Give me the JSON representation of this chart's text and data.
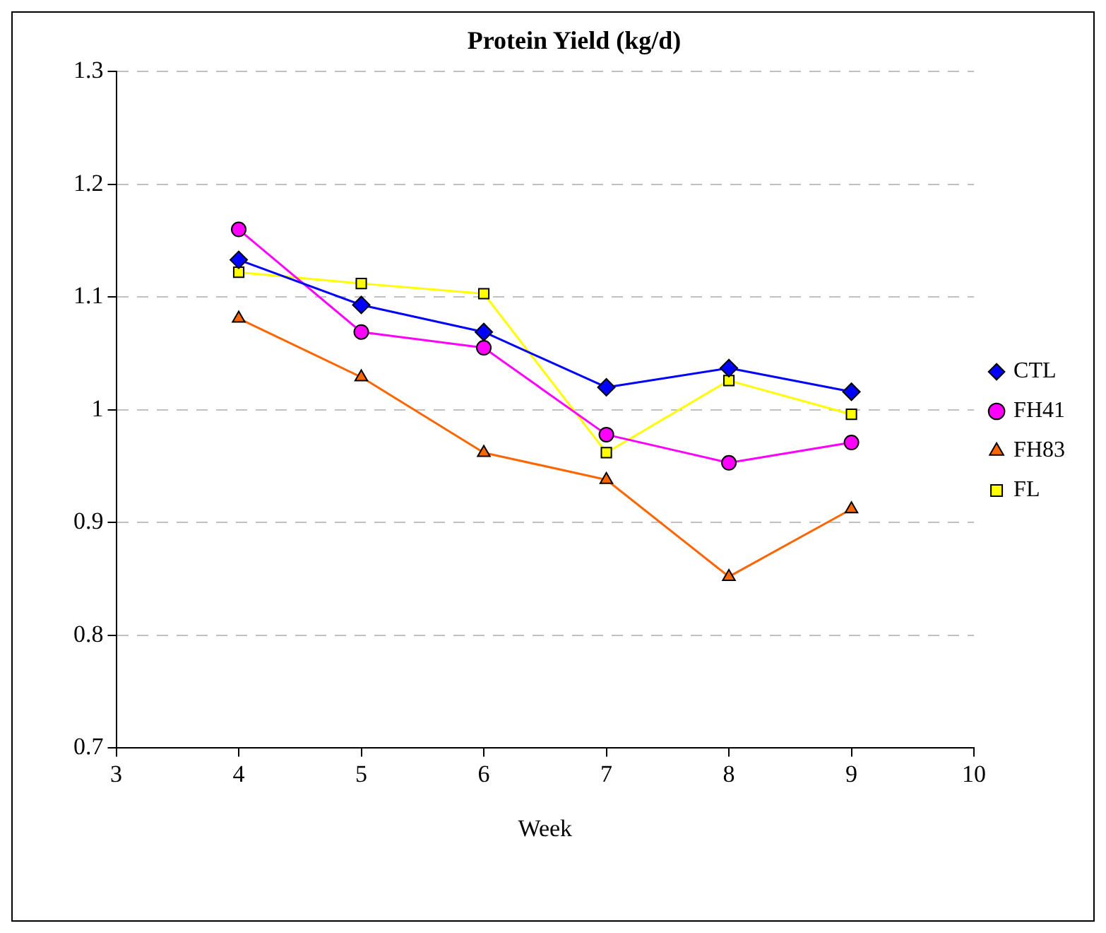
{
  "chart_data": {
    "type": "line",
    "title": "Protein Yield (kg/d)",
    "xlabel": "Week",
    "x": [
      4,
      5,
      6,
      7,
      8,
      9
    ],
    "series": [
      {
        "name": "CTL",
        "color": "#0000ff",
        "marker": "diamond",
        "values": [
          1.133,
          1.093,
          1.069,
          1.02,
          1.037,
          1.016
        ]
      },
      {
        "name": "FH41",
        "color": "#ff00ff",
        "marker": "circle",
        "values": [
          1.16,
          1.069,
          1.055,
          0.978,
          0.953,
          0.971
        ]
      },
      {
        "name": "FH83",
        "color": "#ff6600",
        "marker": "triangle",
        "values": [
          1.081,
          1.029,
          0.962,
          0.938,
          0.852,
          0.912
        ]
      },
      {
        "name": "FL",
        "color": "#ffff00",
        "marker": "square",
        "values": [
          1.122,
          1.112,
          1.103,
          0.962,
          1.026,
          0.996
        ]
      }
    ],
    "xlim": [
      3,
      10
    ],
    "xticks": [
      3,
      4,
      5,
      6,
      7,
      8,
      9,
      10
    ],
    "ylim": [
      0.7,
      1.3
    ],
    "yticks": [
      0.7,
      0.8,
      0.9,
      1,
      1.1,
      1.2,
      1.3
    ],
    "grid": "y",
    "legend": "right"
  }
}
